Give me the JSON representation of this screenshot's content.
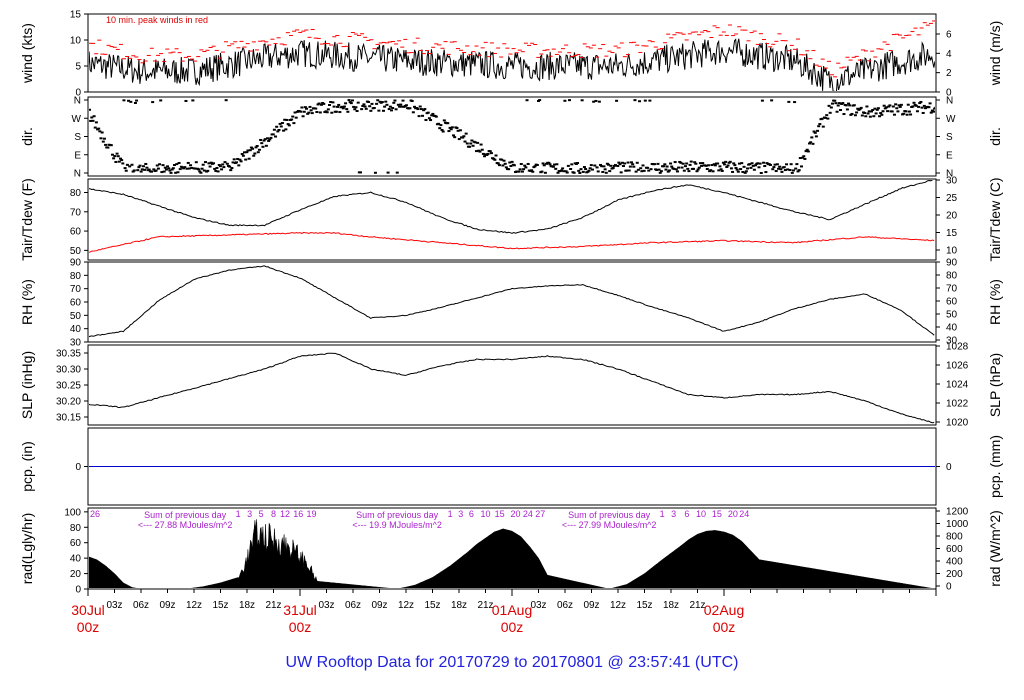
{
  "chart_data": {
    "type": "line",
    "title": "UW Rooftop Data for 20170729  to  20170801 @ 23:57:41  (UTC)",
    "x_axis": {
      "major_ticks": [
        {
          "label_top": "30Jul",
          "label_bottom": "00z"
        },
        {
          "label_top": "31Jul",
          "label_bottom": "00z"
        },
        {
          "label_top": "01Aug",
          "label_bottom": "00z"
        },
        {
          "label_top": "02Aug",
          "label_bottom": "00z"
        }
      ],
      "minor_labels": [
        "03z",
        "06z",
        "09z",
        "12z",
        "15z",
        "18z",
        "21z",
        "03z",
        "06z",
        "09z",
        "12z",
        "15z",
        "18z",
        "21z",
        "03z",
        "06z",
        "09z",
        "12z",
        "15z",
        "18z",
        "21z"
      ]
    },
    "panels": [
      {
        "id": "wind",
        "left_label": "wind (kts)",
        "right_label": "wind (m/s)",
        "annotation": "10 min. peak winds in red",
        "left_ticks": [
          "0",
          "5",
          "10",
          "15"
        ],
        "right_ticks": [
          "0",
          "2",
          "4",
          "6"
        ],
        "ylim": [
          0,
          15
        ],
        "series": [
          {
            "color": "#000000",
            "x_hours": [
              0,
              6,
              12,
              20,
              24,
              36,
              48,
              60,
              72,
              80,
              84,
              90,
              96
            ],
            "y": [
              5.5,
              4,
              4,
              6.5,
              7.5,
              6,
              5,
              5,
              8,
              6,
              2,
              5,
              7.5
            ]
          },
          {
            "color": "#ff0000",
            "x_hours": [
              0,
              6,
              12,
              20,
              24,
              36,
              48,
              60,
              72,
              80,
              84,
              90,
              96
            ],
            "y": [
              9,
              7,
              7,
              10,
              11,
              9,
              8,
              8,
              12,
              9,
              4,
              9,
              13
            ]
          }
        ]
      },
      {
        "id": "dir",
        "left_label": "dir.",
        "right_label": "dir.",
        "left_ticks": [
          "N",
          "E",
          "S",
          "W",
          "N"
        ],
        "right_ticks": [
          "N",
          "E",
          "S",
          "W",
          "N"
        ],
        "ylim": [
          0,
          360
        ],
        "series": [
          {
            "color": "#000000",
            "x_hours": [
              0,
              4,
              10,
              16,
              24,
              28,
              36,
              48,
              56,
              64,
              72,
              80,
              84,
              88,
              96
            ],
            "y": [
              290,
              10,
              25,
              25,
              300,
              330,
              340,
              25,
              20,
              25,
              30,
              15,
              330,
              300,
              330
            ]
          }
        ]
      },
      {
        "id": "temp",
        "left_label": "Tair/Tdew (F)",
        "right_label": "Tair/Tdew (C)",
        "left_ticks": [
          "50",
          "60",
          "70",
          "80"
        ],
        "right_ticks": [
          "10",
          "15",
          "20",
          "25",
          "30"
        ],
        "ylim": [
          45,
          87
        ],
        "series": [
          {
            "color": "#000000",
            "x_hours": [
              0,
              4,
              8,
              12,
              16,
              20,
              24,
              28,
              32,
              36,
              40,
              44,
              48,
              52,
              56,
              60,
              64,
              68,
              72,
              76,
              80,
              84,
              88,
              92,
              96
            ],
            "y": [
              82,
              79,
              73,
              67,
              63,
              63,
              71,
              78,
              80,
              75,
              67,
              61,
              59,
              61,
              67,
              76,
              81,
              84,
              80,
              75,
              70,
              66,
              74,
              82,
              87
            ]
          },
          {
            "color": "#ff0000",
            "x_hours": [
              0,
              4,
              8,
              16,
              24,
              28,
              32,
              40,
              48,
              56,
              64,
              72,
              80,
              88,
              96
            ],
            "y": [
              49,
              53,
              57,
              58,
              59,
              59,
              57,
              54,
              51,
              52,
              54,
              55,
              54,
              57,
              55
            ]
          }
        ]
      },
      {
        "id": "rh",
        "left_label": "RH (%)",
        "right_label": "RH (%)",
        "left_ticks": [
          "30",
          "40",
          "50",
          "60",
          "70",
          "80",
          "90"
        ],
        "right_ticks": [
          "30",
          "40",
          "50",
          "60",
          "70",
          "80",
          "90"
        ],
        "ylim": [
          30,
          90
        ],
        "series": [
          {
            "color": "#000000",
            "x_hours": [
              0,
              4,
              8,
              12,
              16,
              20,
              24,
              28,
              32,
              36,
              40,
              44,
              48,
              52,
              56,
              60,
              64,
              68,
              72,
              76,
              80,
              84,
              88,
              92,
              96
            ],
            "y": [
              34,
              38,
              61,
              77,
              84,
              87,
              78,
              63,
              48,
              50,
              56,
              63,
              70,
              72,
              73,
              65,
              56,
              48,
              38,
              45,
              55,
              62,
              66,
              54,
              34
            ]
          }
        ]
      },
      {
        "id": "slp",
        "left_label": "SLP (inHg)",
        "right_label": "SLP (hPa)",
        "left_ticks": [
          "30.15",
          "30.20",
          "30.25",
          "30.30",
          "30.35"
        ],
        "right_ticks": [
          "1020",
          "1022",
          "1024",
          "1026",
          "1028"
        ],
        "ylim": [
          30.125,
          30.375
        ],
        "series": [
          {
            "color": "#000000",
            "x_hours": [
              0,
              4,
              8,
              12,
              16,
              20,
              24,
              28,
              32,
              36,
              40,
              44,
              48,
              52,
              56,
              60,
              64,
              68,
              72,
              76,
              80,
              84,
              88,
              92,
              96
            ],
            "y": [
              30.19,
              30.18,
              30.21,
              30.24,
              30.27,
              30.3,
              30.34,
              30.35,
              30.3,
              30.28,
              30.31,
              30.33,
              30.33,
              30.34,
              30.33,
              30.3,
              30.26,
              30.22,
              30.21,
              30.22,
              30.22,
              30.23,
              30.2,
              30.16,
              30.13
            ]
          }
        ]
      },
      {
        "id": "pcp",
        "left_label": "pcp. (in)",
        "right_label": "pcp. (mm)",
        "left_ticks": [
          "0"
        ],
        "right_ticks": [
          "0"
        ],
        "ylim": [
          -1,
          1
        ],
        "series": [
          {
            "color": "#0000cc",
            "x_hours": [
              0,
              96
            ],
            "y": [
              0,
              0
            ]
          }
        ]
      },
      {
        "id": "rad",
        "left_label": "rad(Lgly/hr)",
        "right_label": "rad (W/m^2)",
        "left_ticks": [
          "0",
          "20",
          "40",
          "60",
          "80",
          "100"
        ],
        "right_ticks": [
          "0",
          "200",
          "400",
          "600",
          "800",
          "1000",
          "1200"
        ],
        "ylim": [
          0,
          105
        ],
        "day_sums": [
          {
            "heading": "Sum of previous day",
            "value": "<--- 27.88 MJoules/m^2"
          },
          {
            "heading": "Sum of previous day",
            "value": "<--- 19.9 MJoules/m^2"
          },
          {
            "heading": "Sum of previous day",
            "value": "<--- 27.99 MJoules/m^2"
          }
        ],
        "hour_marks": [
          {
            "text": "26",
            "x_hours": 0.8
          },
          {
            "text": "1",
            "x_hours": 17.0
          },
          {
            "text": "3",
            "x_hours": 18.3
          },
          {
            "text": "5",
            "x_hours": 19.6
          },
          {
            "text": "8",
            "x_hours": 21.0
          },
          {
            "text": "12",
            "x_hours": 22.3
          },
          {
            "text": "16",
            "x_hours": 23.8
          },
          {
            "text": "19",
            "x_hours": 25.3
          },
          {
            "text": "1",
            "x_hours": 41.0
          },
          {
            "text": "3",
            "x_hours": 42.2
          },
          {
            "text": "6",
            "x_hours": 43.4
          },
          {
            "text": "10",
            "x_hours": 45.0
          },
          {
            "text": "15",
            "x_hours": 46.6
          },
          {
            "text": "20",
            "x_hours": 48.4
          },
          {
            "text": "24",
            "x_hours": 49.8
          },
          {
            "text": "27",
            "x_hours": 51.2
          },
          {
            "text": "1",
            "x_hours": 65.0
          },
          {
            "text": "3",
            "x_hours": 66.3
          },
          {
            "text": "6",
            "x_hours": 67.8
          },
          {
            "text": "10",
            "x_hours": 69.4
          },
          {
            "text": "15",
            "x_hours": 71.2
          },
          {
            "text": "20",
            "x_hours": 73.0
          },
          {
            "text": "24",
            "x_hours": 74.3
          }
        ],
        "series": [
          {
            "color": "#000000",
            "x_hours": [
              0,
              1,
              2,
              3,
              4,
              5,
              6,
              11,
              13,
              15,
              17,
              18,
              19,
              20,
              21,
              22,
              23,
              24,
              25,
              26,
              35,
              37,
              39,
              41,
              43,
              44,
              45,
              46,
              47,
              48,
              49,
              50,
              51,
              52,
              59,
              61,
              63,
              65,
              67,
              68,
              69,
              70,
              71,
              72,
              73,
              74,
              75,
              76,
              96
            ],
            "y": [
              42,
              38,
              30,
              20,
              8,
              2,
              0,
              0,
              3,
              8,
              15,
              45,
              85,
              80,
              76,
              70,
              62,
              50,
              35,
              10,
              0,
              5,
              15,
              30,
              48,
              58,
              66,
              74,
              78,
              75,
              68,
              55,
              40,
              18,
              0,
              6,
              20,
              38,
              55,
              64,
              71,
              75,
              76,
              74,
              70,
              62,
              50,
              38,
              0
            ]
          }
        ]
      }
    ]
  }
}
